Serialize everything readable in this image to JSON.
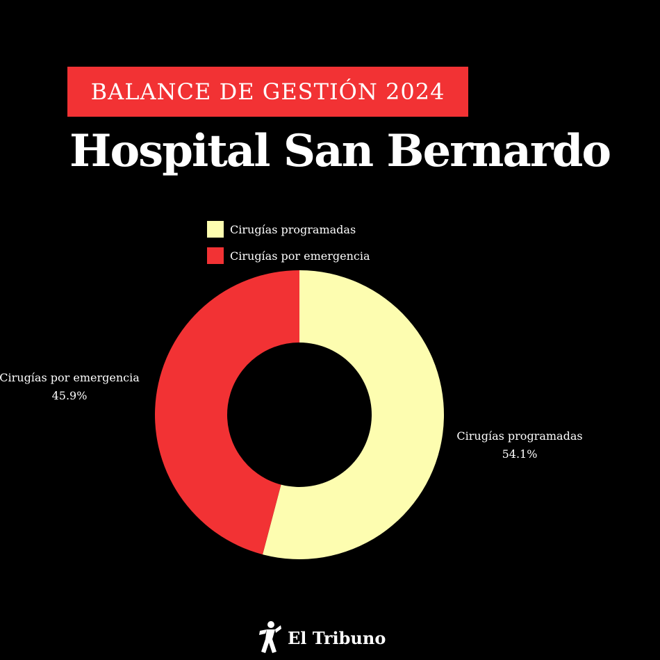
{
  "header": {
    "badge": "BALANCE DE GESTIÓN 2024",
    "title": "Hospital San Bernardo"
  },
  "legend": {
    "items": [
      {
        "label": "Cirugías programadas",
        "color": "#fdfdb0"
      },
      {
        "label": "Cirugías por emergencia",
        "color": "#f23234"
      }
    ]
  },
  "chart_data": {
    "type": "pie",
    "variant": "donut",
    "title": "Hospital San Bernardo",
    "categories": [
      "Cirugías programadas",
      "Cirugías por emergencia"
    ],
    "values": [
      54.1,
      45.9
    ],
    "value_labels": [
      "54.1%",
      "45.9%"
    ],
    "colors": [
      "#fdfdb0",
      "#f23234"
    ],
    "legend_position": "top"
  },
  "footer": {
    "brand": "El Tribuno",
    "icon": "el-tribuno-logo-icon"
  },
  "colors": {
    "background": "#000000",
    "accent": "#f23234",
    "slice_light": "#fdfdb0"
  }
}
